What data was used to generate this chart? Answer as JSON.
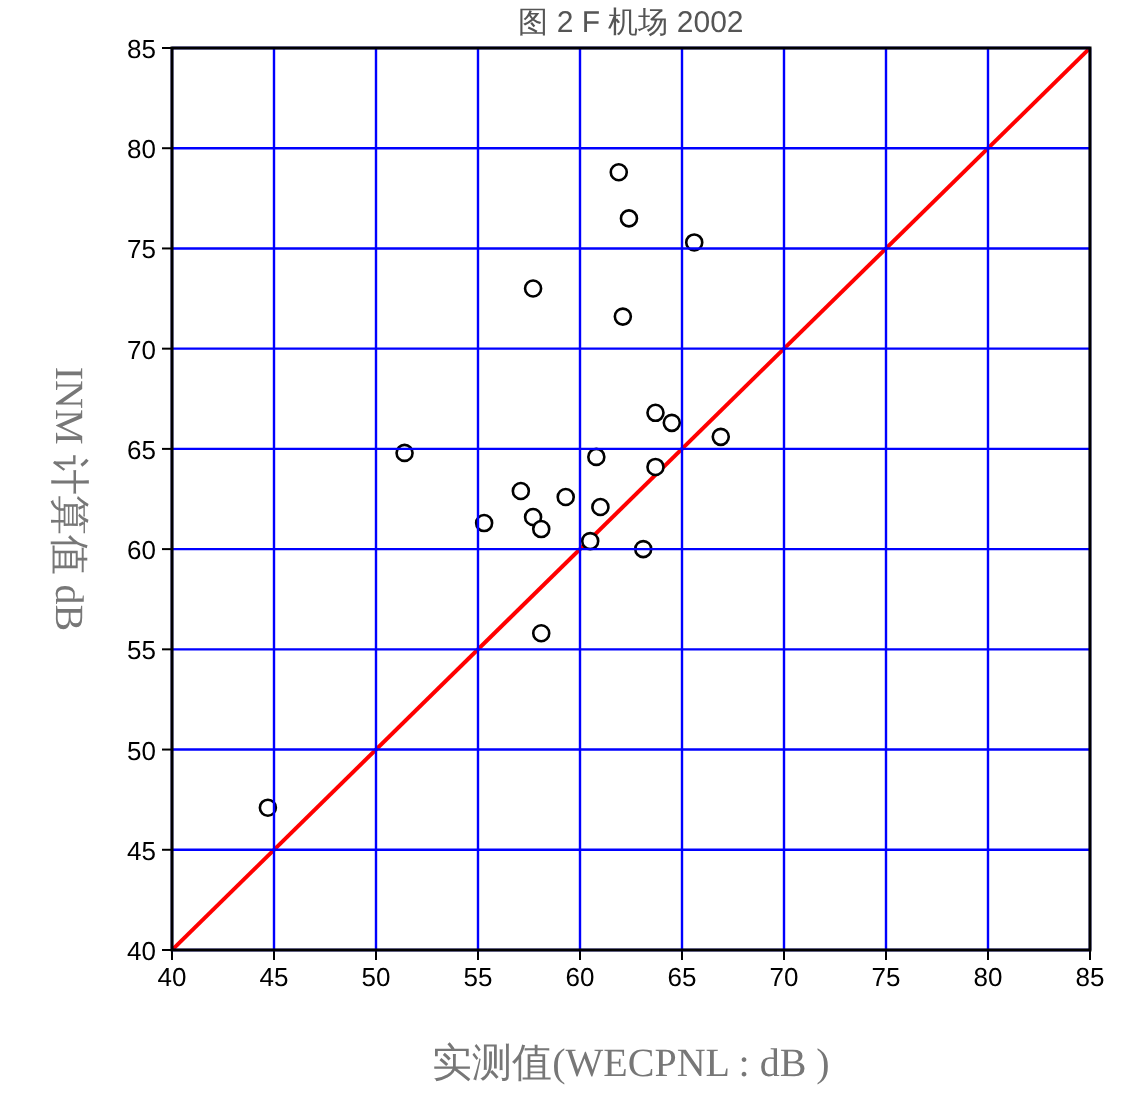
{
  "chart_data": {
    "type": "scatter",
    "title": "图 2  F 机场 2002",
    "xlabel": "实测值(WECPNL : dB )",
    "ylabel": "INM 计算值  dB",
    "xlim": [
      40,
      85
    ],
    "ylim": [
      40,
      85
    ],
    "xticks": [
      40,
      45,
      50,
      55,
      60,
      65,
      70,
      75,
      80,
      85
    ],
    "yticks": [
      40,
      45,
      50,
      55,
      60,
      65,
      70,
      75,
      80,
      85
    ],
    "grid": true,
    "marker": "circle",
    "series": [
      {
        "color": "#000000",
        "x": [
          61.9,
          62.4,
          65.6,
          57.7,
          62.1,
          51.4,
          60.8,
          63.7,
          64.2,
          64.5,
          66.9,
          63.7,
          57.1,
          59.3,
          61.0,
          57.7,
          55.3,
          58.1,
          60.5,
          63.1,
          58.1,
          44.7
        ],
        "values": [
          78.8,
          76.5,
          75.3,
          73.0,
          71.6,
          64.8,
          64.6,
          66.8,
          null,
          66.3,
          65.6,
          64.1,
          62.9,
          62.6,
          62.1,
          61.6,
          61.3,
          61.0,
          60.4,
          60.0,
          55.8,
          47.1
        ]
      },
      {
        "type": "line",
        "marker": "none",
        "color": "#ff0000",
        "x": [
          40,
          85
        ],
        "values": [
          40,
          85
        ]
      }
    ]
  }
}
